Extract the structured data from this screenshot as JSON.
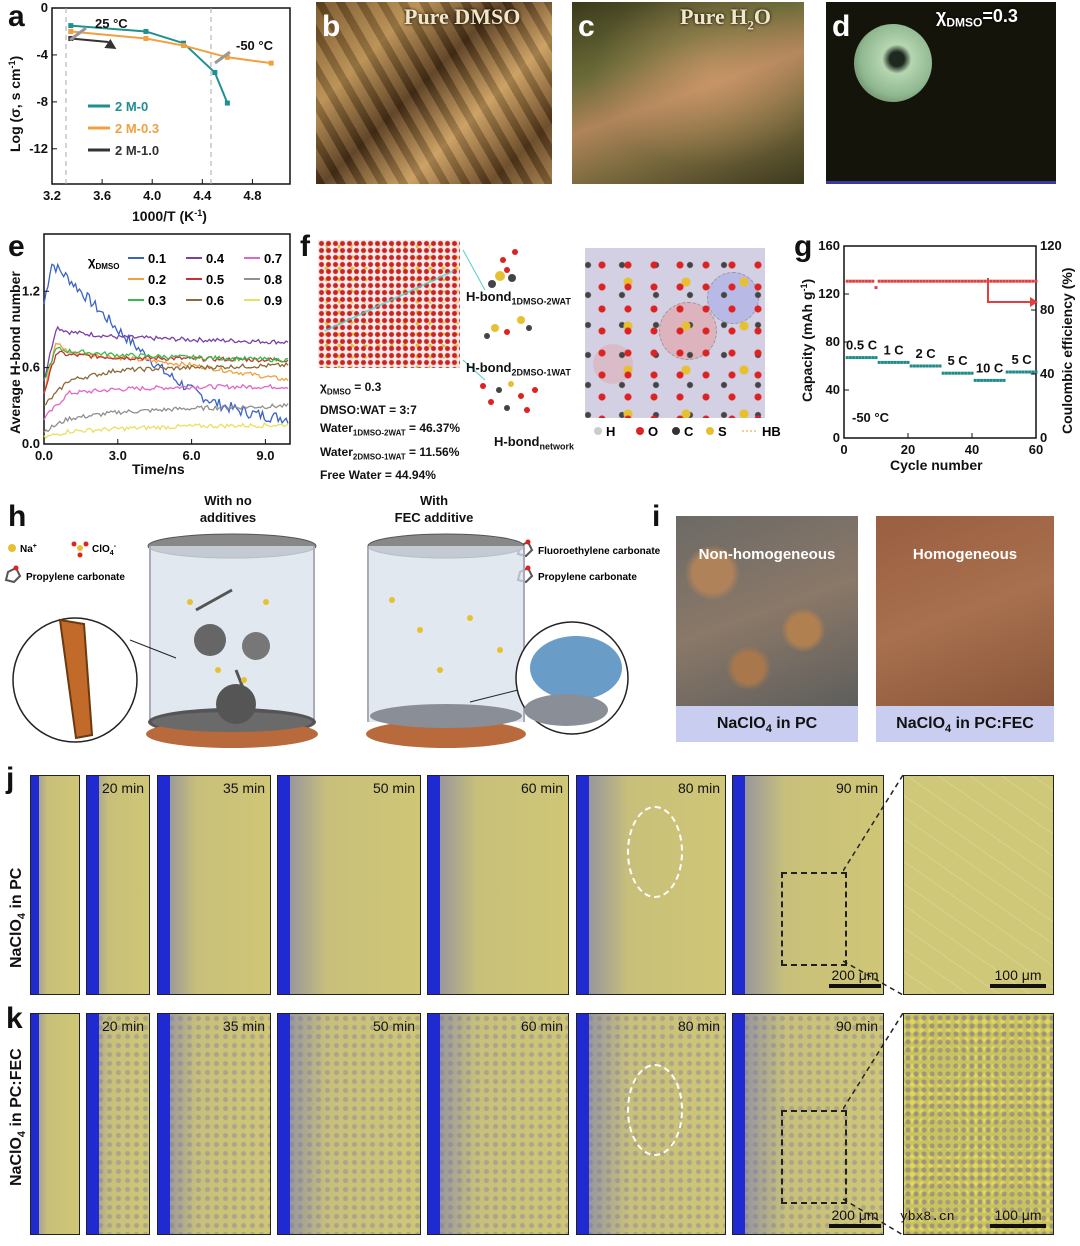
{
  "panels": {
    "a": "a",
    "b": "b",
    "c": "c",
    "d": "d",
    "e": "e",
    "f": "f",
    "g": "g",
    "h": "h",
    "i": "i",
    "j": "j",
    "k": "k"
  },
  "panel_a": {
    "temp_high": "25 °C",
    "temp_low": "-50 °C",
    "xlabel": "1000/T  (K",
    "xlabel_sup": "-1",
    "xlabel_end": ")",
    "ylabel": "Log (σ, s cm",
    "ylabel_sup": "-1",
    "ylabel_end": ")",
    "legend": [
      "2 M-0",
      "2 M-0.3",
      "2 M-1.0"
    ]
  },
  "panel_b": {
    "title": "Pure DMSO"
  },
  "panel_c": {
    "title": "Pure H",
    "title_sub": "2",
    "title_end": "O"
  },
  "panel_d": {
    "title": "χ",
    "title_sub": "DMSO",
    "title_end": "=0.3"
  },
  "panel_e": {
    "legend_title": "χ",
    "legend_title_sub": "DMSO",
    "legend": [
      "0.1",
      "0.4",
      "0.7",
      "0.2",
      "0.5",
      "0.8",
      "0.3",
      "0.6",
      "0.9"
    ],
    "xlabel": "Time/ns",
    "ylabel": "Average H-bond number"
  },
  "panel_f": {
    "chi": "χ",
    "chi_sub": "DMSO",
    "chi_end": " = 0.3",
    "ratio": "DMSO:WAT = 3:7",
    "water1": "Water",
    "water1_sub": "1DMSO-2WAT",
    "water1_end": " = 46.37%",
    "water2": "Water",
    "water2_sub": "2DMSO-1WAT",
    "water2_end": " = 11.56%",
    "free": "Free Water = 44.94%",
    "hb1": "H-bond",
    "hb1_sub": "1DMSO-2WAT",
    "hb2": "H-bond",
    "hb2_sub": "2DMSO-1WAT",
    "hb3": "H-bond",
    "hb3_sub": "network",
    "legend": [
      "H",
      "O",
      "C",
      "S",
      "HB"
    ]
  },
  "panel_g": {
    "xlabel": "Cycle number",
    "ylabel_left": "Capacity (mAh g",
    "ylabel_left_sup": "-1",
    "ylabel_left_end": ")",
    "ylabel_right": "Coulombic efficiency (%)",
    "temp": "-50 °C",
    "rates": [
      "0.5 C",
      "1 C",
      "2 C",
      "5 C",
      "10 C",
      "5 C"
    ]
  },
  "panel_h": {
    "left_title_1": "With no",
    "left_title_2": "additives",
    "right_title_1": "With",
    "right_title_2": "FEC additive",
    "legend_na": "Na",
    "legend_na_sup": "+",
    "legend_clo4": "ClO",
    "legend_clo4_sub": "4",
    "legend_clo4_sup": "-",
    "legend_pc": "Propylene carbonate",
    "legend_fec": "Fluoroethylene carbonate",
    "legend_pc2": "Propylene carbonate"
  },
  "panel_i": {
    "left_overlay": "Non-homogeneous",
    "right_overlay": "Homogeneous",
    "left_caption": "NaClO",
    "left_caption_sub": "4",
    "left_caption_end": " in PC",
    "right_caption": "NaClO",
    "right_caption_sub": "4",
    "right_caption_end": " in PC:FEC"
  },
  "panel_j": {
    "row_label": "NaClO",
    "row_label_sub": "4",
    "row_label_end": " in PC",
    "times": [
      "",
      "20 min",
      "35 min",
      "50 min",
      "60 min",
      "80 min",
      "90 min"
    ],
    "scale_main": "200 μm",
    "scale_zoom": "100 μm"
  },
  "panel_k": {
    "row_label": "NaClO",
    "row_label_sub": "4",
    "row_label_end": " in PC:FEC",
    "times": [
      "",
      "20 min",
      "35 min",
      "50 min",
      "60 min",
      "80 min",
      "90 min"
    ],
    "scale_main": "200 μm",
    "scale_zoom": "100 μm"
  },
  "watermark": "ybx8.cn",
  "chart_data": [
    {
      "panel": "a",
      "type": "line",
      "xlabel": "1000/T (K-1)",
      "ylabel": "Log (σ, s cm-1)",
      "xlim": [
        3.2,
        5.1
      ],
      "ylim": [
        -15,
        0
      ],
      "xticks": [
        "3.2",
        "3.6",
        "4.0",
        "4.4",
        "4.8"
      ],
      "yticks": [
        "0",
        "-4",
        "-8",
        "-12"
      ],
      "series": [
        {
          "name": "2 M-0",
          "color": "#1f8f8f",
          "x": [
            3.35,
            3.95,
            4.25,
            4.5,
            4.6
          ],
          "y": [
            -1.5,
            -2.0,
            -3.0,
            -5.5,
            -8.1
          ]
        },
        {
          "name": "2 M-0.3",
          "color": "#f0a040",
          "x": [
            3.35,
            3.95,
            4.25,
            4.6,
            4.95
          ],
          "y": [
            -2.0,
            -2.6,
            -3.2,
            -4.2,
            -4.7
          ]
        },
        {
          "name": "2 M-1.0",
          "color": "#333333",
          "x": [
            3.35,
            3.65
          ],
          "y": [
            -2.6,
            -2.9
          ]
        }
      ]
    },
    {
      "panel": "e",
      "type": "line",
      "xlabel": "Time/ns",
      "ylabel": "Average H-bond number",
      "xlim": [
        0,
        10
      ],
      "ylim": [
        0,
        1.65
      ],
      "xticks": [
        "0.0",
        "3.0",
        "6.0",
        "9.0"
      ],
      "yticks": [
        "0.0",
        "0.6",
        "1.2"
      ],
      "series": [
        {
          "name": "0.1",
          "color": "#3a62c8",
          "x": [
            0,
            0.3,
            1,
            2,
            3,
            4,
            5,
            6,
            7,
            8,
            9,
            10
          ],
          "y": [
            1.1,
            1.42,
            1.3,
            1.1,
            0.9,
            0.72,
            0.55,
            0.42,
            0.32,
            0.26,
            0.22,
            0.2
          ]
        },
        {
          "name": "0.4",
          "color": "#7b3fa8",
          "x": [
            0,
            0.5,
            1,
            3,
            6,
            10
          ],
          "y": [
            0.5,
            0.92,
            0.88,
            0.84,
            0.82,
            0.8
          ]
        },
        {
          "name": "0.7",
          "color": "#e067c8",
          "x": [
            0,
            1,
            3,
            6,
            10
          ],
          "y": [
            0.2,
            0.4,
            0.43,
            0.45,
            0.45
          ]
        },
        {
          "name": "0.2",
          "color": "#f0a040",
          "x": [
            0,
            0.5,
            1,
            3,
            6,
            10
          ],
          "y": [
            0.4,
            0.8,
            0.72,
            0.68,
            0.62,
            0.5
          ]
        },
        {
          "name": "0.5",
          "color": "#c83030",
          "x": [
            0,
            0.5,
            1,
            3,
            6,
            10
          ],
          "y": [
            0.4,
            0.72,
            0.7,
            0.68,
            0.67,
            0.66
          ]
        },
        {
          "name": "0.8",
          "color": "#909090",
          "x": [
            0,
            1,
            3,
            6,
            10
          ],
          "y": [
            0.1,
            0.2,
            0.25,
            0.28,
            0.3
          ]
        },
        {
          "name": "0.3",
          "color": "#3ab84a",
          "x": [
            0,
            0.5,
            1,
            3,
            6,
            10
          ],
          "y": [
            0.5,
            0.75,
            0.73,
            0.7,
            0.68,
            0.66
          ]
        },
        {
          "name": "0.6",
          "color": "#8a6a3a",
          "x": [
            0,
            1,
            3,
            6,
            10
          ],
          "y": [
            0.3,
            0.5,
            0.58,
            0.6,
            0.62
          ]
        },
        {
          "name": "0.9",
          "color": "#e8e060",
          "x": [
            0,
            1,
            3,
            6,
            10
          ],
          "y": [
            0.05,
            0.1,
            0.12,
            0.14,
            0.15
          ]
        }
      ]
    },
    {
      "panel": "g",
      "type": "scatter",
      "xlabel": "Cycle number",
      "ylabel": "Capacity (mAh g-1)",
      "ylabel_right": "Coulombic efficiency (%)",
      "xlim": [
        0,
        60
      ],
      "ylim": [
        0,
        160
      ],
      "ylim_right": [
        0,
        120
      ],
      "xticks": [
        "0",
        "20",
        "40",
        "60"
      ],
      "yticks": [
        "0",
        "40",
        "80",
        "120",
        "160"
      ],
      "yticks_right": [
        "0",
        "40",
        "80",
        "120"
      ],
      "series": [
        {
          "name": "Capacity",
          "color": "#1f8a8a",
          "rates": [
            {
              "label": "0.5 C",
              "x0": 1,
              "x1": 10,
              "y": 67
            },
            {
              "label": "1 C",
              "x0": 11,
              "x1": 20,
              "y": 63
            },
            {
              "label": "2 C",
              "x0": 21,
              "x1": 30,
              "y": 60
            },
            {
              "label": "5 C",
              "x0": 31,
              "x1": 40,
              "y": 54
            },
            {
              "label": "10 C",
              "x0": 41,
              "x1": 50,
              "y": 48
            },
            {
              "label": "5 C",
              "x0": 51,
              "x1": 60,
              "y": 55
            }
          ]
        },
        {
          "name": "Coulombic efficiency",
          "color": "#e04040",
          "y": 98
        }
      ]
    }
  ]
}
